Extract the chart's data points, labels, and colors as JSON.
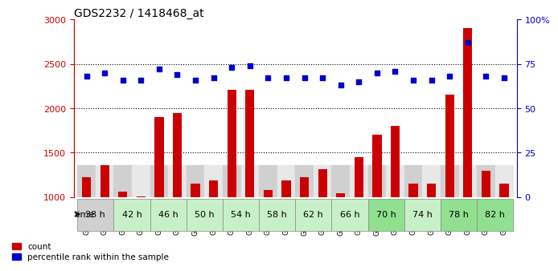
{
  "title": "GDS2232 / 1418468_at",
  "samples": [
    "GSM96630",
    "GSM96923",
    "GSM96631",
    "GSM96924",
    "GSM96632",
    "GSM96925",
    "GSM96633",
    "GSM96926",
    "GSM96634",
    "GSM96927",
    "GSM96635",
    "GSM96928",
    "GSM96636",
    "GSM96929",
    "GSM96637",
    "GSM96930",
    "GSM96638",
    "GSM96931",
    "GSM96639",
    "GSM96932",
    "GSM96640",
    "GSM96933",
    "GSM96641",
    "GSM96934"
  ],
  "count": [
    1220,
    1360,
    1060,
    1010,
    1900,
    1950,
    1150,
    1190,
    2210,
    2210,
    1080,
    1190,
    1220,
    1310,
    1040,
    1450,
    1700,
    1800,
    1150,
    1150,
    2150,
    2900,
    1300,
    1150
  ],
  "percentile": [
    68,
    70,
    66,
    66,
    72,
    69,
    66,
    67,
    73,
    74,
    67,
    67,
    67,
    67,
    63,
    65,
    70,
    71,
    66,
    66,
    68,
    87,
    68,
    67
  ],
  "time_groups": [
    {
      "label": "38 h",
      "start": 0,
      "end": 2,
      "color": "#d0d0d0"
    },
    {
      "label": "42 h",
      "start": 2,
      "end": 4,
      "color": "#c8f0c8"
    },
    {
      "label": "46 h",
      "start": 4,
      "end": 6,
      "color": "#c8f0c8"
    },
    {
      "label": "50 h",
      "start": 6,
      "end": 8,
      "color": "#c8f0c8"
    },
    {
      "label": "54 h",
      "start": 8,
      "end": 10,
      "color": "#c8f0c8"
    },
    {
      "label": "58 h",
      "start": 10,
      "end": 12,
      "color": "#c8f0c8"
    },
    {
      "label": "62 h",
      "start": 12,
      "end": 14,
      "color": "#c8f0c8"
    },
    {
      "label": "66 h",
      "start": 14,
      "end": 16,
      "color": "#c8f0c8"
    },
    {
      "label": "70 h",
      "start": 16,
      "end": 18,
      "color": "#90e090"
    },
    {
      "label": "74 h",
      "start": 18,
      "end": 20,
      "color": "#c8f0c8"
    },
    {
      "label": "78 h",
      "start": 20,
      "end": 22,
      "color": "#90e090"
    },
    {
      "label": "82 h",
      "start": 22,
      "end": 24,
      "color": "#90e090"
    }
  ],
  "bar_color": "#cc0000",
  "dot_color": "#0000cc",
  "left_ylim": [
    1000,
    3000
  ],
  "right_ylim": [
    0,
    100
  ],
  "left_yticks": [
    1000,
    1500,
    2000,
    2500,
    3000
  ],
  "right_yticks": [
    0,
    25,
    50,
    75,
    100
  ],
  "right_yticklabels": [
    "0",
    "25",
    "50",
    "75",
    "100%"
  ],
  "grid_values": [
    1500,
    2000,
    2500
  ],
  "background_color": "#ffffff"
}
